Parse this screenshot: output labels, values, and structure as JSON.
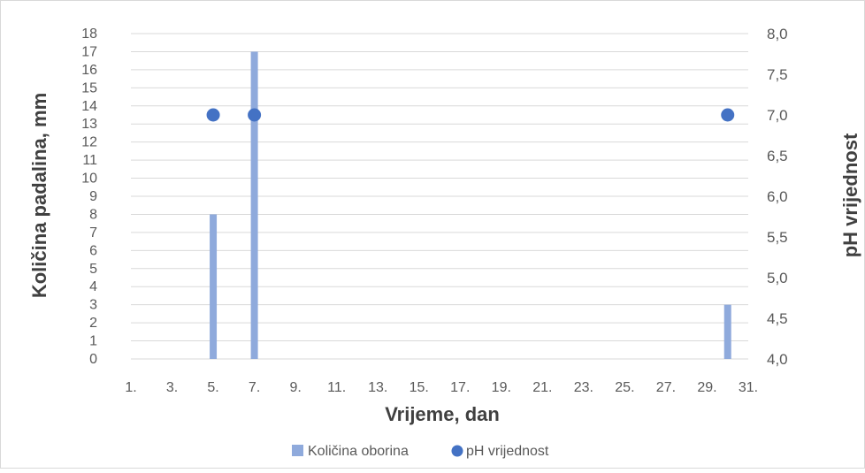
{
  "chart_data": {
    "type": "bar",
    "title": "",
    "xlabel": "Vrijeme, dan",
    "ylabel": "Količina padalina, mm",
    "y2label": "pH vrijednost",
    "x_ticks": [
      "1.",
      "3.",
      "5.",
      "7.",
      "9.",
      "11.",
      "13.",
      "15.",
      "17.",
      "19.",
      "21.",
      "23.",
      "25.",
      "27.",
      "29.",
      "31."
    ],
    "y_ticks": [
      "0",
      "1",
      "2",
      "3",
      "4",
      "5",
      "6",
      "7",
      "8",
      "9",
      "10",
      "11",
      "12",
      "13",
      "14",
      "15",
      "16",
      "17",
      "18"
    ],
    "y2_ticks": [
      "4,0",
      "4,5",
      "5,0",
      "5,5",
      "6,0",
      "6,5",
      "7,0",
      "7,5",
      "8,0"
    ],
    "xlim": [
      1,
      31
    ],
    "ylim": [
      0,
      18
    ],
    "y2lim": [
      4.0,
      8.0
    ],
    "grid": true,
    "legend_position": "bottom",
    "series": [
      {
        "name": "Količina oborina",
        "kind": "bar",
        "axis": "left",
        "color": "#8FAADC",
        "points": [
          {
            "x": 5,
            "y": 8
          },
          {
            "x": 7,
            "y": 17
          },
          {
            "x": 30,
            "y": 3
          }
        ]
      },
      {
        "name": "pH vrijednost",
        "kind": "scatter",
        "axis": "right",
        "color": "#4472C4",
        "points": [
          {
            "x": 5,
            "y": 7.0
          },
          {
            "x": 7,
            "y": 7.0
          },
          {
            "x": 30,
            "y": 7.0
          }
        ]
      }
    ]
  }
}
